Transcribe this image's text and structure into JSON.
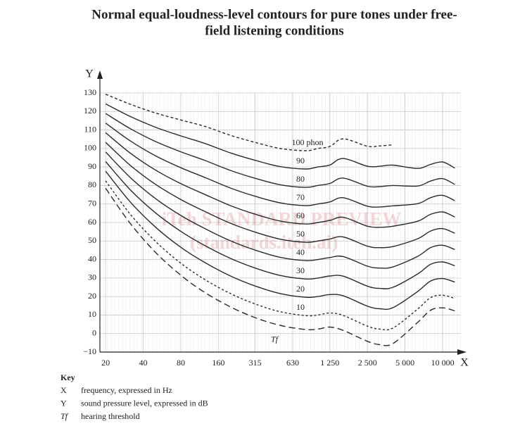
{
  "chart_data": {
    "type": "line",
    "title": "Normal equal-loudness-level contours for pure tones under free-",
    "title_line2": "field listening conditions",
    "x_label": "X",
    "y_label": "Y",
    "log_x": true,
    "grid": true,
    "x": [
      20,
      31.5,
      50,
      80,
      125,
      200,
      315,
      500,
      800,
      1000,
      1250,
      1600,
      2500,
      3150,
      4000,
      6300,
      8000,
      10000,
      12500
    ],
    "xlim": [
      18,
      14000
    ],
    "xticks": [
      20,
      40,
      80,
      160,
      315,
      630,
      {
        "value": 1250,
        "label": "1 250"
      },
      {
        "value": 2500,
        "label": "2 500"
      },
      {
        "value": 5000,
        "label": "5 000"
      },
      {
        "value": 10000,
        "label": "10 000"
      }
    ],
    "ylim": [
      -10,
      130
    ],
    "yticks": [
      {
        "value": -10,
        "label": "−10"
      },
      0,
      10,
      20,
      30,
      40,
      50,
      60,
      70,
      80,
      90,
      100,
      110,
      120,
      130
    ],
    "series": [
      {
        "name": "100 phon",
        "color": "#2a2a2a",
        "dash": "4,3",
        "values": [
          129.3,
          123.9,
          119.2,
          115.4,
          111.9,
          107.1,
          103.3,
          100.0,
          98.8,
          100,
          101.1,
          105.2,
          101.2,
          101.4,
          102.0,
          null,
          null,
          null,
          null
        ]
      },
      {
        "name": "90",
        "color": "#2a2a2a",
        "values": [
          124.1,
          117.3,
          111.5,
          106.8,
          102.7,
          97.6,
          93.6,
          90.2,
          88.9,
          90,
          91.1,
          94.6,
          90.4,
          90.4,
          91.0,
          89.2,
          91.4,
          92.7,
          89.4
        ]
      },
      {
        "name": "80",
        "color": "#2a2a2a",
        "values": [
          118.9,
          110.7,
          103.8,
          98.2,
          93.5,
          88.1,
          83.9,
          80.4,
          79.0,
          80,
          81.1,
          84.0,
          79.6,
          79.4,
          80.0,
          79.7,
          82.4,
          83.7,
          80.6
        ]
      },
      {
        "name": "70",
        "color": "#2a2a2a",
        "values": [
          113.7,
          104.1,
          96.1,
          89.6,
          84.3,
          78.6,
          74.2,
          70.6,
          69.1,
          70,
          71.1,
          73.4,
          68.8,
          68.4,
          69.0,
          70.2,
          73.4,
          74.7,
          71.8
        ]
      },
      {
        "name": "60",
        "color": "#2a2a2a",
        "values": [
          108.5,
          97.5,
          88.4,
          81.0,
          75.1,
          69.1,
          64.5,
          60.8,
          59.2,
          60,
          61.1,
          62.8,
          58.0,
          57.4,
          58.0,
          60.7,
          64.4,
          65.7,
          63.0
        ]
      },
      {
        "name": "50",
        "color": "#2a2a2a",
        "values": [
          103.3,
          90.9,
          80.7,
          72.4,
          65.9,
          59.6,
          54.8,
          51.0,
          49.3,
          50,
          51.1,
          52.2,
          47.2,
          46.4,
          47.0,
          51.2,
          55.4,
          56.7,
          54.2
        ]
      },
      {
        "name": "40",
        "color": "#2a2a2a",
        "values": [
          98.1,
          84.3,
          73.0,
          63.8,
          56.7,
          50.1,
          45.1,
          41.2,
          39.4,
          40,
          41.1,
          41.6,
          36.4,
          35.4,
          36.0,
          41.7,
          46.4,
          47.7,
          45.4
        ]
      },
      {
        "name": "30",
        "color": "#2a2a2a",
        "values": [
          92.9,
          77.7,
          65.3,
          55.2,
          47.5,
          40.6,
          35.4,
          31.4,
          29.5,
          30,
          31.1,
          31.0,
          25.6,
          24.4,
          25.0,
          32.2,
          37.4,
          38.7,
          36.6
        ]
      },
      {
        "name": "20",
        "color": "#2a2a2a",
        "values": [
          87.7,
          71.1,
          57.6,
          46.6,
          38.3,
          31.1,
          25.7,
          21.6,
          19.6,
          20,
          21.1,
          20.4,
          14.8,
          13.4,
          14.0,
          22.7,
          28.4,
          29.7,
          27.8
        ]
      },
      {
        "name": "10",
        "color": "#2a2a2a",
        "dash": "3,3",
        "values": [
          82.5,
          64.5,
          49.9,
          38.0,
          29.1,
          21.6,
          16.0,
          11.8,
          9.7,
          10,
          11.1,
          9.8,
          4.0,
          2.4,
          3.0,
          13.2,
          19.4,
          20.7,
          19.0
        ]
      },
      {
        "name": "Tf",
        "color": "#2a2a2a",
        "dash": "9,5",
        "values": [
          78.5,
          59.5,
          44.0,
          31.5,
          22.1,
          14.4,
          8.6,
          4.4,
          2.2,
          2.4,
          3.5,
          1.7,
          -4.2,
          -6.0,
          -5.4,
          6.0,
          12.6,
          13.9,
          12.3
        ]
      }
    ]
  },
  "watermark": [
    "iTeh STANDARD PREVIEW",
    "(standards.iteh.ai)"
  ],
  "key": {
    "title": "Key",
    "rows": [
      [
        "X",
        "frequency, expressed in Hz"
      ],
      [
        "Y",
        "sound pressure level, expressed in dB"
      ],
      [
        "Tf",
        "hearing threshold"
      ]
    ]
  }
}
